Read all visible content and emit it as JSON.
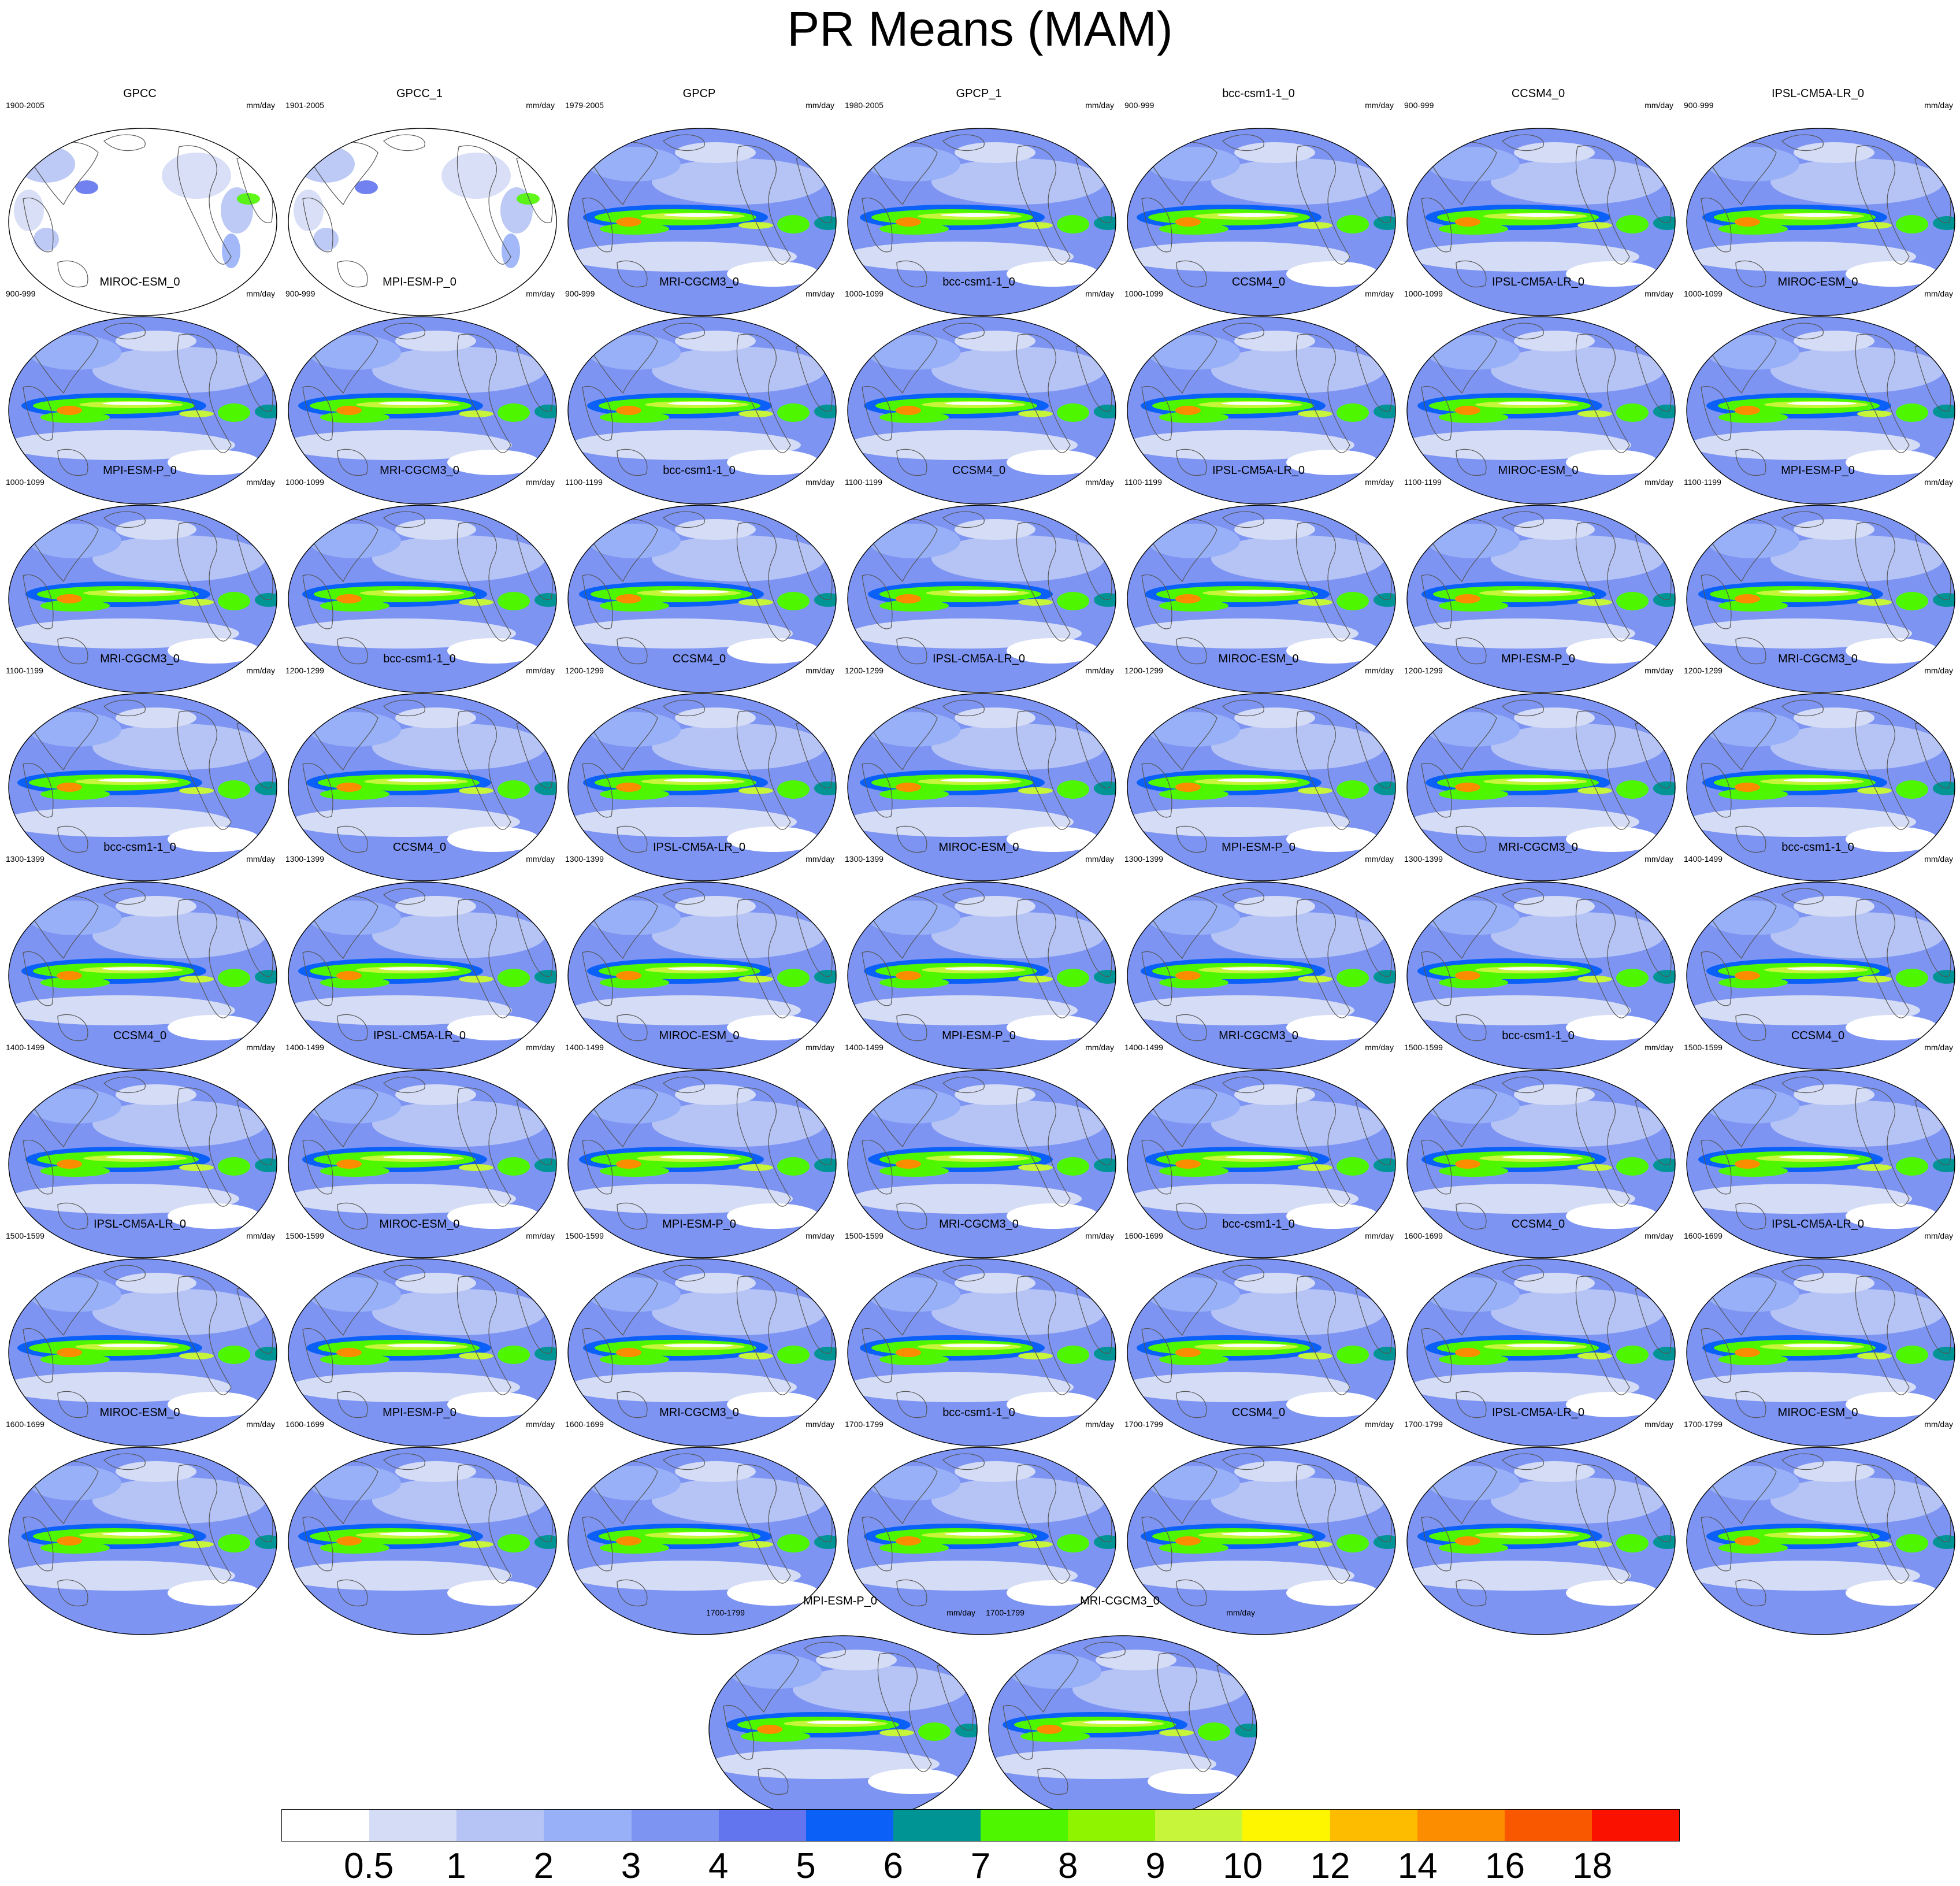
{
  "title": "PR Means (MAM)",
  "units": "mm/day",
  "colorbar": {
    "labels": [
      "0.5",
      "1",
      "2",
      "3",
      "4",
      "5",
      "6",
      "7",
      "8",
      "9",
      "10",
      "12",
      "14",
      "16",
      "18"
    ],
    "colors": [
      "#ffffff",
      "#d5dcf5",
      "#b6c4f5",
      "#98b0f7",
      "#7d94f3",
      "#6274ee",
      "#0b60f8",
      "#009494",
      "#4ef700",
      "#8ff400",
      "#c6f53a",
      "#fdf600",
      "#fdbc00",
      "#fc8d00",
      "#fa5800",
      "#fb1100"
    ]
  },
  "panels": [
    {
      "name": "GPCC",
      "years": "1900-2005",
      "type": "land"
    },
    {
      "name": "GPCC_1",
      "years": "1901-2005",
      "type": "land"
    },
    {
      "name": "GPCP",
      "years": "1979-2005",
      "type": "full"
    },
    {
      "name": "GPCP_1",
      "years": "1980-2005",
      "type": "full"
    },
    {
      "name": "bcc-csm1-1_0",
      "years": "900-999",
      "type": "full"
    },
    {
      "name": "CCSM4_0",
      "years": "900-999",
      "type": "full"
    },
    {
      "name": "IPSL-CM5A-LR_0",
      "years": "900-999",
      "type": "full"
    },
    {
      "name": "MIROC-ESM_0",
      "years": "900-999",
      "type": "full"
    },
    {
      "name": "MPI-ESM-P_0",
      "years": "900-999",
      "type": "full"
    },
    {
      "name": "MRI-CGCM3_0",
      "years": "900-999",
      "type": "full"
    },
    {
      "name": "bcc-csm1-1_0",
      "years": "1000-1099",
      "type": "full"
    },
    {
      "name": "CCSM4_0",
      "years": "1000-1099",
      "type": "full"
    },
    {
      "name": "IPSL-CM5A-LR_0",
      "years": "1000-1099",
      "type": "full"
    },
    {
      "name": "MIROC-ESM_0",
      "years": "1000-1099",
      "type": "full"
    },
    {
      "name": "MPI-ESM-P_0",
      "years": "1000-1099",
      "type": "full"
    },
    {
      "name": "MRI-CGCM3_0",
      "years": "1000-1099",
      "type": "full"
    },
    {
      "name": "bcc-csm1-1_0",
      "years": "1100-1199",
      "type": "full"
    },
    {
      "name": "CCSM4_0",
      "years": "1100-1199",
      "type": "full"
    },
    {
      "name": "IPSL-CM5A-LR_0",
      "years": "1100-1199",
      "type": "full"
    },
    {
      "name": "MIROC-ESM_0",
      "years": "1100-1199",
      "type": "full"
    },
    {
      "name": "MPI-ESM-P_0",
      "years": "1100-1199",
      "type": "full"
    },
    {
      "name": "MRI-CGCM3_0",
      "years": "1100-1199",
      "type": "full"
    },
    {
      "name": "bcc-csm1-1_0",
      "years": "1200-1299",
      "type": "full"
    },
    {
      "name": "CCSM4_0",
      "years": "1200-1299",
      "type": "full"
    },
    {
      "name": "IPSL-CM5A-LR_0",
      "years": "1200-1299",
      "type": "full"
    },
    {
      "name": "MIROC-ESM_0",
      "years": "1200-1299",
      "type": "full"
    },
    {
      "name": "MPI-ESM-P_0",
      "years": "1200-1299",
      "type": "full"
    },
    {
      "name": "MRI-CGCM3_0",
      "years": "1200-1299",
      "type": "full"
    },
    {
      "name": "bcc-csm1-1_0",
      "years": "1300-1399",
      "type": "full"
    },
    {
      "name": "CCSM4_0",
      "years": "1300-1399",
      "type": "full"
    },
    {
      "name": "IPSL-CM5A-LR_0",
      "years": "1300-1399",
      "type": "full"
    },
    {
      "name": "MIROC-ESM_0",
      "years": "1300-1399",
      "type": "full"
    },
    {
      "name": "MPI-ESM-P_0",
      "years": "1300-1399",
      "type": "full"
    },
    {
      "name": "MRI-CGCM3_0",
      "years": "1300-1399",
      "type": "full"
    },
    {
      "name": "bcc-csm1-1_0",
      "years": "1400-1499",
      "type": "full"
    },
    {
      "name": "CCSM4_0",
      "years": "1400-1499",
      "type": "full"
    },
    {
      "name": "IPSL-CM5A-LR_0",
      "years": "1400-1499",
      "type": "full"
    },
    {
      "name": "MIROC-ESM_0",
      "years": "1400-1499",
      "type": "full"
    },
    {
      "name": "MPI-ESM-P_0",
      "years": "1400-1499",
      "type": "full"
    },
    {
      "name": "MRI-CGCM3_0",
      "years": "1400-1499",
      "type": "full"
    },
    {
      "name": "bcc-csm1-1_0",
      "years": "1500-1599",
      "type": "full"
    },
    {
      "name": "CCSM4_0",
      "years": "1500-1599",
      "type": "full"
    },
    {
      "name": "IPSL-CM5A-LR_0",
      "years": "1500-1599",
      "type": "full"
    },
    {
      "name": "MIROC-ESM_0",
      "years": "1500-1599",
      "type": "full"
    },
    {
      "name": "MPI-ESM-P_0",
      "years": "1500-1599",
      "type": "full"
    },
    {
      "name": "MRI-CGCM3_0",
      "years": "1500-1599",
      "type": "full"
    },
    {
      "name": "bcc-csm1-1_0",
      "years": "1600-1699",
      "type": "full"
    },
    {
      "name": "CCSM4_0",
      "years": "1600-1699",
      "type": "full"
    },
    {
      "name": "IPSL-CM5A-LR_0",
      "years": "1600-1699",
      "type": "full"
    },
    {
      "name": "MIROC-ESM_0",
      "years": "1600-1699",
      "type": "full"
    },
    {
      "name": "MPI-ESM-P_0",
      "years": "1600-1699",
      "type": "full"
    },
    {
      "name": "MRI-CGCM3_0",
      "years": "1600-1699",
      "type": "full"
    },
    {
      "name": "bcc-csm1-1_0",
      "years": "1700-1799",
      "type": "full"
    },
    {
      "name": "CCSM4_0",
      "years": "1700-1799",
      "type": "full"
    },
    {
      "name": "IPSL-CM5A-LR_0",
      "years": "1700-1799",
      "type": "full"
    },
    {
      "name": "MIROC-ESM_0",
      "years": "1700-1799",
      "type": "full"
    },
    {
      "name": "MPI-ESM-P_0",
      "years": "1700-1799",
      "type": "full"
    },
    {
      "name": "MRI-CGCM3_0",
      "years": "1700-1799",
      "type": "full"
    }
  ]
}
